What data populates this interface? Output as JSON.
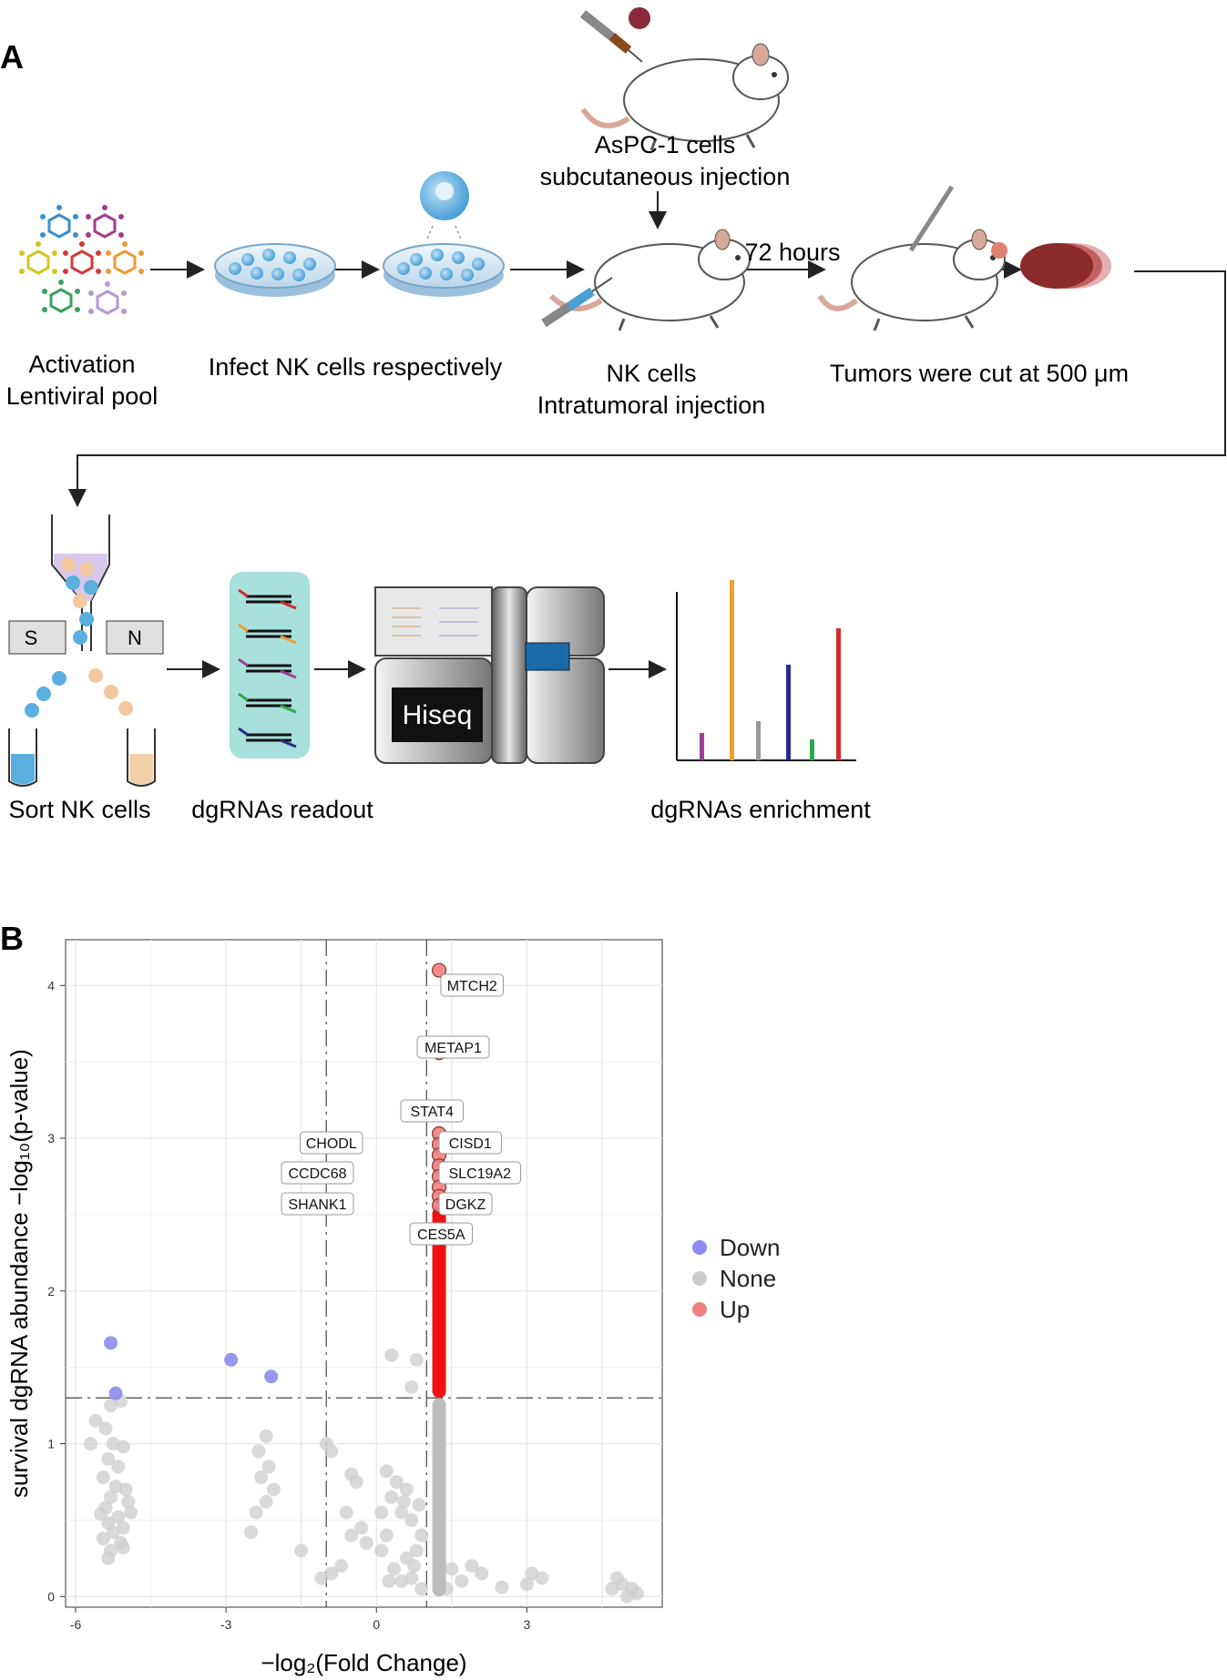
{
  "panel_a": {
    "letter": "A",
    "steps": {
      "lentiviral": [
        "Activation",
        "Lentiviral pool"
      ],
      "infect": "Infect NK cells respectively",
      "aspc": [
        "AsPC-1 cells",
        "subcutaneous injection"
      ],
      "nk_injection": [
        "NK cells",
        "Intratumoral injection"
      ],
      "hours": "72 hours",
      "tumor_cut": "Tumors were cut at 500 μm",
      "sort": "Sort NK cells",
      "readout": "dgRNAs readout",
      "enrichment": "dgRNAs enrichment"
    },
    "sorter_labels": {
      "left": "S",
      "right": "N"
    },
    "sequencer": "Hiseq",
    "colors": {
      "purple": "#9b3f99",
      "orange": "#f0a030",
      "gray": "#999999",
      "navy": "#2a2a8a",
      "green": "#2ea84a",
      "red": "#d42a2a",
      "nk_blue": "#5aaee0",
      "tumor": "#8a2a2a"
    }
  },
  "panel_b": {
    "letter": "B",
    "chart_data": {
      "type": "scatter",
      "xlabel": "−log₂(Fold Change)",
      "ylabel": "survival dgRNA abundance −log₁₀(p-value)",
      "xlim": [
        -6.2,
        5.7
      ],
      "ylim": [
        -0.07,
        4.3
      ],
      "x_ticks": [
        -6,
        -3,
        0,
        3
      ],
      "y_ticks": [
        0,
        1,
        2,
        3,
        4
      ],
      "thresholds": {
        "x": [
          -1,
          1
        ],
        "y": 1.3
      },
      "grid": true,
      "legend_position": "right",
      "colors": {
        "Down": "#8c8cf0",
        "None": "#cccccc",
        "Up": "#f08080"
      },
      "series": [
        {
          "name": "Down",
          "points": [
            [
              -5.3,
              1.66
            ],
            [
              -5.2,
              1.33
            ],
            [
              -2.9,
              1.55
            ],
            [
              -2.1,
              1.44
            ]
          ]
        },
        {
          "name": "Up",
          "points": [
            [
              1.25,
              4.1
            ],
            [
              1.25,
              3.56
            ],
            [
              1.25,
              3.16
            ],
            [
              1.25,
              3.03
            ],
            [
              1.25,
              2.96
            ],
            [
              1.25,
              2.89
            ],
            [
              1.25,
              2.82
            ],
            [
              1.25,
              2.75
            ],
            [
              1.25,
              2.68
            ],
            [
              1.25,
              2.62
            ],
            [
              1.25,
              2.56
            ]
          ]
        },
        {
          "name": "None",
          "points": [
            [
              -5.3,
              1.25
            ],
            [
              -5.1,
              1.28
            ],
            [
              -5.4,
              1.1
            ],
            [
              -5.25,
              1.0
            ],
            [
              -5.05,
              0.98
            ],
            [
              -5.35,
              0.9
            ],
            [
              -5.15,
              0.85
            ],
            [
              -5.45,
              0.78
            ],
            [
              -5.2,
              0.72
            ],
            [
              -5.0,
              0.7
            ],
            [
              -5.3,
              0.65
            ],
            [
              -4.95,
              0.62
            ],
            [
              -5.4,
              0.58
            ],
            [
              -5.5,
              0.54
            ],
            [
              -5.15,
              0.52
            ],
            [
              -5.35,
              0.48
            ],
            [
              -5.05,
              0.45
            ],
            [
              -5.25,
              0.42
            ],
            [
              -5.45,
              0.38
            ],
            [
              -5.1,
              0.35
            ],
            [
              -5.3,
              0.3
            ],
            [
              -5.05,
              0.32
            ],
            [
              -5.35,
              0.25
            ],
            [
              -5.7,
              1.0
            ],
            [
              -5.6,
              1.15
            ],
            [
              -4.9,
              0.55
            ],
            [
              -2.2,
              1.05
            ],
            [
              -2.35,
              0.95
            ],
            [
              -2.15,
              0.85
            ],
            [
              -2.3,
              0.78
            ],
            [
              -2.05,
              0.7
            ],
            [
              -2.2,
              0.62
            ],
            [
              -2.4,
              0.55
            ],
            [
              -2.5,
              0.42
            ],
            [
              -1.5,
              0.3
            ],
            [
              -1.0,
              1.0
            ],
            [
              -0.9,
              0.95
            ],
            [
              -0.5,
              0.8
            ],
            [
              -0.4,
              0.75
            ],
            [
              0.2,
              0.82
            ],
            [
              0.4,
              0.75
            ],
            [
              0.6,
              0.7
            ],
            [
              0.55,
              0.62
            ],
            [
              0.5,
              0.55
            ],
            [
              0.3,
              0.65
            ],
            [
              0.85,
              0.6
            ],
            [
              0.7,
              0.5
            ],
            [
              0.9,
              0.4
            ],
            [
              0.8,
              0.3
            ],
            [
              0.6,
              0.25
            ],
            [
              0.2,
              0.4
            ],
            [
              0.1,
              0.3
            ],
            [
              -0.2,
              0.35
            ],
            [
              -0.3,
              0.45
            ],
            [
              -0.5,
              0.4
            ],
            [
              -0.7,
              0.2
            ],
            [
              -0.9,
              0.15
            ],
            [
              -1.1,
              0.12
            ],
            [
              -0.6,
              0.55
            ],
            [
              0.1,
              0.55
            ],
            [
              0.35,
              0.18
            ],
            [
              0.5,
              0.1
            ],
            [
              0.25,
              0.1
            ],
            [
              0.7,
              0.12
            ],
            [
              0.9,
              0.05
            ],
            [
              0.3,
              1.58
            ],
            [
              0.8,
              1.55
            ],
            [
              0.7,
              1.37
            ],
            [
              0.75,
              0.2
            ],
            [
              1.5,
              0.18
            ],
            [
              1.9,
              0.2
            ],
            [
              2.1,
              0.15
            ],
            [
              1.7,
              0.1
            ],
            [
              1.4,
              0.05
            ],
            [
              2.5,
              0.06
            ],
            [
              3.0,
              0.08
            ],
            [
              3.1,
              0.15
            ],
            [
              3.3,
              0.12
            ],
            [
              4.8,
              0.12
            ],
            [
              4.9,
              0.08
            ],
            [
              5.1,
              0.05
            ],
            [
              5.2,
              0.02
            ],
            [
              4.7,
              0.05
            ],
            [
              5.0,
              0.0
            ]
          ]
        }
      ],
      "labels": [
        {
          "gene": "MTCH2"
        },
        {
          "gene": "METAP1"
        },
        {
          "gene": "STAT4"
        },
        {
          "gene": "CHODL"
        },
        {
          "gene": "CISD1"
        },
        {
          "gene": "CCDC68"
        },
        {
          "gene": "SLC19A2"
        },
        {
          "gene": "SHANK1"
        },
        {
          "gene": "DGKZ"
        },
        {
          "gene": "CES5A"
        }
      ]
    }
  }
}
